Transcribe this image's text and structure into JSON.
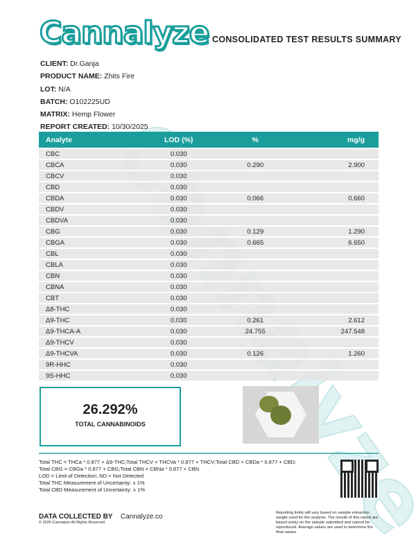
{
  "header": {
    "logo": "Cannalyze",
    "title": "CONSOLIDATED TEST RESULTS SUMMARY"
  },
  "info": [
    {
      "label": "CLIENT:",
      "value": "Dr.Ganja"
    },
    {
      "label": "PRODUCT NAME:",
      "value": "Zhits Fire"
    },
    {
      "label": "LOT:",
      "value": "N/A"
    },
    {
      "label": "BATCH:",
      "value": "O102225UD"
    },
    {
      "label": "MATRIX:",
      "value": "Hemp Flower"
    },
    {
      "label": "REPORT CREATED:",
      "value": "10/30/2025"
    }
  ],
  "table": {
    "columns": [
      "Analyte",
      "LOD (%)",
      "%",
      "mg/g"
    ],
    "rows": [
      [
        "CBC",
        "0.030",
        "",
        ""
      ],
      [
        "CBCA",
        "0.030",
        "0.290",
        "2.900"
      ],
      [
        "CBCV",
        "0.030",
        "",
        ""
      ],
      [
        "CBD",
        "0.030",
        "",
        ""
      ],
      [
        "CBDA",
        "0.030",
        "0.066",
        "0.660"
      ],
      [
        "CBDV",
        "0.030",
        "",
        ""
      ],
      [
        "CBDVA",
        "0.030",
        "",
        ""
      ],
      [
        "CBG",
        "0.030",
        "0.129",
        "1.290"
      ],
      [
        "CBGA",
        "0.030",
        "0.665",
        "6.650"
      ],
      [
        "CBL",
        "0.030",
        "",
        ""
      ],
      [
        "CBLA",
        "0.030",
        "",
        ""
      ],
      [
        "CBN",
        "0.030",
        "",
        ""
      ],
      [
        "CBNA",
        "0.030",
        "",
        ""
      ],
      [
        "CBT",
        "0.030",
        "",
        ""
      ],
      [
        "Δ8-THC",
        "0.030",
        "",
        ""
      ],
      [
        "Δ9-THC",
        "0.030",
        "0.261",
        "2.612"
      ],
      [
        "Δ9-THCA-A",
        "0.030",
        "24.755",
        "247.548"
      ],
      [
        "Δ9-THCV",
        "0.030",
        "",
        ""
      ],
      [
        "Δ9-THCVA",
        "0.030",
        "0.126",
        "1.260"
      ],
      [
        "9R-HHC",
        "0.030",
        "",
        ""
      ],
      [
        "9S-HHC",
        "0.030",
        "",
        ""
      ]
    ]
  },
  "total": {
    "value": "26.292%",
    "label": "TOTAL CANNABINOIDS"
  },
  "notes": [
    "Total THC = THCa * 0.877 + Δ9-THC;Total THCV = THCVa * 0.877 + THCV;Total CBD = CBDa * 0.877 + CBD;",
    "Total CBG = CBGa * 0.877 + CBG;Total CBN = CBNa * 0.877 + CBN",
    "LOD = Limit of Detection; ND = Not Detected",
    "Total THC Measurement of Uncertainty: ± 1%",
    "Total CBD Measurement of Uncertainty: ± 1%"
  ],
  "footer": {
    "data_collected_label": "DATA COLLECTED BY",
    "data_collected_value": "Cannalyze.co",
    "copyright": "© 2025 Cannalyze All Rights Reserved.",
    "disclaimer": "Reporting limits will vary based on sample extraction weight used for the analysis. The results of this report are based solely on the sample submitted and cannot be reproduced. Average values are used to determine the final values."
  },
  "colors": {
    "accent": "#1a9e9c",
    "row": "#e4e4e4"
  }
}
